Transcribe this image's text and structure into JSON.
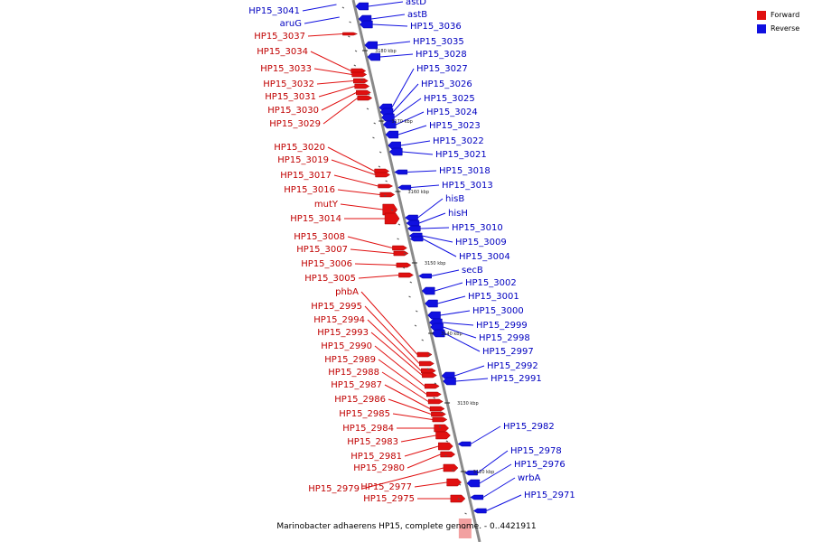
{
  "legend": {
    "forward_label": "Forward",
    "reverse_label": "Reverse",
    "forward_color": "#e01010",
    "reverse_color": "#1010e0"
  },
  "caption": "Marinobacter adhaerens HP15, complete genome. - 0..4421911",
  "scale_ticks": [
    "3180 kbp",
    "3170 kbp",
    "3160 kbp",
    "3150 kbp",
    "3140 kbp",
    "3130 kbp",
    "3120 kbp"
  ],
  "forward_genes": [
    "HP15_3037",
    "HP15_3034",
    "HP15_3033",
    "HP15_3032",
    "HP15_3031",
    "HP15_3030",
    "HP15_3029",
    "HP15_3020",
    "HP15_3019",
    "HP15_3017",
    "HP15_3016",
    "mutY",
    "HP15_3014",
    "HP15_3008",
    "HP15_3007",
    "HP15_3006",
    "HP15_3005",
    "phbA",
    "HP15_2995",
    "HP15_2994",
    "HP15_2993",
    "HP15_2990",
    "HP15_2989",
    "HP15_2988",
    "HP15_2987",
    "HP15_2986",
    "HP15_2985",
    "HP15_2984",
    "HP15_2983",
    "HP15_2981",
    "HP15_2980",
    "HP15_2979",
    "HP15_2977",
    "HP15_2975"
  ],
  "reverse_genes": [
    "astD",
    "astB",
    "HP15_3036",
    "HP15_3035",
    "HP15_3028",
    "HP15_3027",
    "HP15_3026",
    "HP15_3025",
    "HP15_3024",
    "HP15_3023",
    "HP15_3022",
    "HP15_3021",
    "HP15_3018",
    "HP15_3013",
    "hisB",
    "hisH",
    "HP15_3010",
    "HP15_3009",
    "HP15_3004",
    "secB",
    "HP15_3002",
    "HP15_3001",
    "HP15_3000",
    "HP15_2999",
    "HP15_2998",
    "HP15_2997",
    "HP15_2992",
    "HP15_2991",
    "HP15_2982",
    "HP15_2978",
    "HP15_2976",
    "wrbA",
    "HP15_2971"
  ],
  "left_top_genes": [
    "HP15_3041",
    "aruG"
  ]
}
